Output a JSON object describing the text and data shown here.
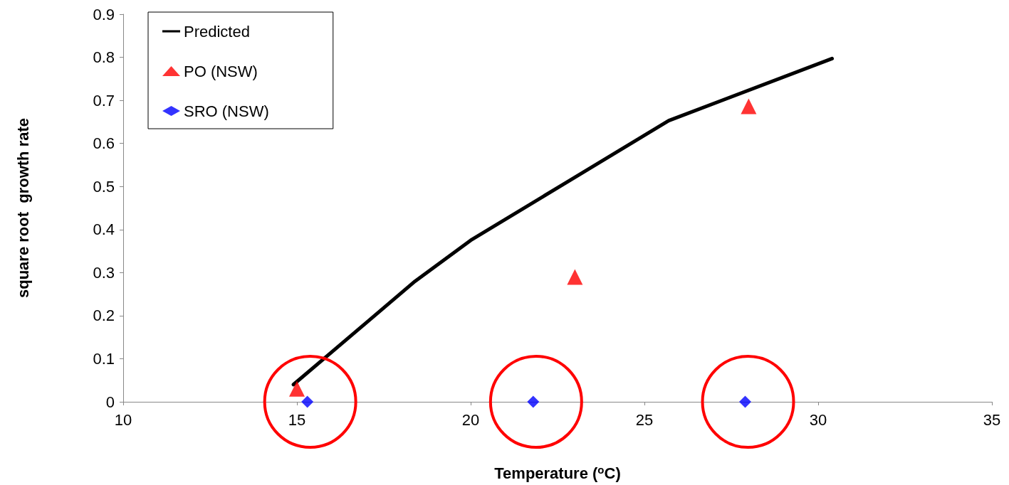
{
  "chart_data": {
    "type": "scatter",
    "xlabel": "Temperature ($^{o}$C)",
    "ylabel": "square root  growth rate",
    "xlim": [
      10,
      35
    ],
    "xticks": [
      10,
      15,
      20,
      25,
      30,
      35
    ],
    "ylim": [
      0,
      0.9
    ],
    "yticks": [
      0,
      0.1,
      0.2,
      0.3,
      0.4,
      0.5,
      0.6,
      0.7,
      0.8,
      0.9
    ],
    "grid": false,
    "legend": "top left",
    "series": [
      {
        "name": "Predicted",
        "type": "line",
        "color": "#000000",
        "marker": "none",
        "line_style": "solid",
        "x": [
          14.9,
          18.4,
          20,
          25.7,
          30.4
        ],
        "values": [
          0.04,
          0.28,
          0.375,
          0.653,
          0.797
        ]
      },
      {
        "name": "PO (NSW)",
        "color": "#ff0000",
        "marker": "triangle",
        "x": [
          15,
          23,
          28
        ],
        "values": [
          0.03,
          0.29,
          0.686
        ]
      },
      {
        "name": "SRO (NSW)",
        "color": "#0000ff",
        "marker": "diamond",
        "x": [
          15.3,
          21.8,
          27.9
        ],
        "values": [
          0,
          0,
          0
        ]
      }
    ]
  }
}
